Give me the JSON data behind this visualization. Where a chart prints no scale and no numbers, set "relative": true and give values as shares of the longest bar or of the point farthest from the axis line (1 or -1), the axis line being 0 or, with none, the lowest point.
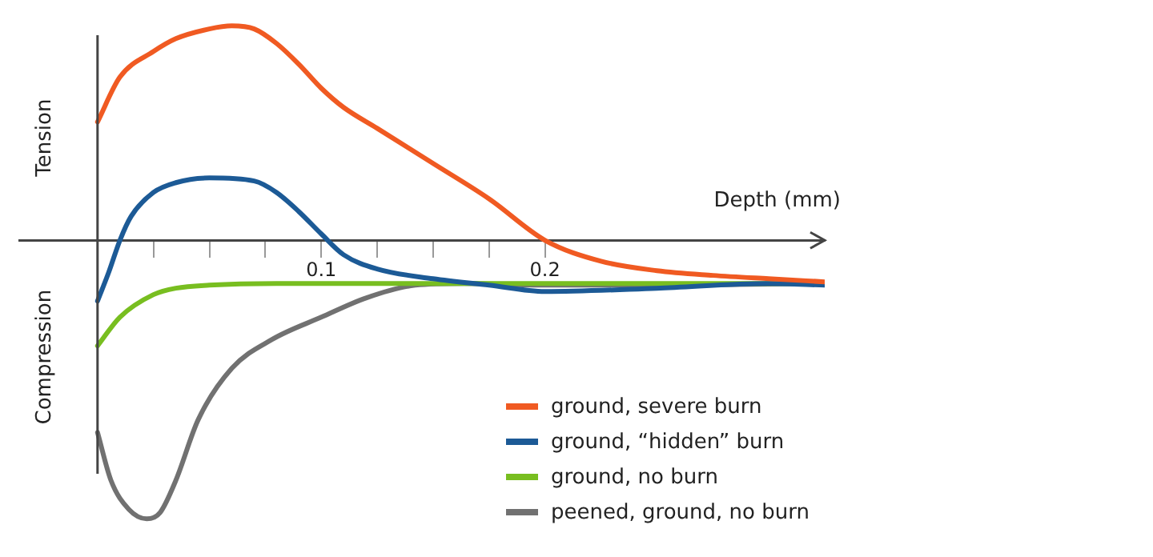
{
  "chart_data": {
    "type": "line",
    "relative": true,
    "xlabel": "Depth (mm)",
    "annotations": [
      "Tension",
      "Compression"
    ],
    "xlim": [
      -0.035,
      0.325
    ],
    "xticks": [
      {
        "value": 0.025,
        "label": null
      },
      {
        "value": 0.05,
        "label": null
      },
      {
        "value": 0.075,
        "label": null
      },
      0.1,
      {
        "value": 0.125,
        "label": null
      },
      {
        "value": 0.15,
        "label": null
      },
      {
        "value": 0.175,
        "label": null
      },
      0.2
    ],
    "legend": "bottom right",
    "grid": false,
    "marker": "none",
    "line_style": "solid",
    "series": [
      {
        "name": "ground, severe burn",
        "color": "#f05a22",
        "x": [
          0,
          0.01,
          0.025,
          0.035,
          0.05,
          0.06,
          0.07,
          0.08,
          0.09,
          0.1,
          0.11,
          0.125,
          0.15,
          0.175,
          0.2,
          0.225,
          0.25,
          0.275,
          0.3,
          0.325
        ],
        "values": [
          0.425,
          0.586,
          0.678,
          0.724,
          0.759,
          0.77,
          0.759,
          0.707,
          0.632,
          0.546,
          0.477,
          0.402,
          0.276,
          0.149,
          0,
          -0.075,
          -0.109,
          -0.126,
          -0.138,
          -0.149
        ]
      },
      {
        "name": "ground, “hidden” burn",
        "color": "#1c5a96",
        "x": [
          0,
          0.005,
          0.01,
          0.015,
          0.025,
          0.035,
          0.05,
          0.07,
          0.08,
          0.09,
          0.1,
          0.11,
          0.125,
          0.15,
          0.175,
          0.2,
          0.25,
          0.3,
          0.325
        ],
        "values": [
          -0.218,
          -0.115,
          0,
          0.086,
          0.172,
          0.207,
          0.224,
          0.213,
          0.172,
          0.103,
          0.023,
          -0.052,
          -0.103,
          -0.138,
          -0.161,
          -0.184,
          -0.172,
          -0.155,
          -0.161
        ]
      },
      {
        "name": "ground, no burn",
        "color": "#78be20",
        "x": [
          0,
          0.01,
          0.025,
          0.035,
          0.05,
          0.08,
          0.15,
          0.25,
          0.325
        ],
        "values": [
          -0.379,
          -0.276,
          -0.195,
          -0.172,
          -0.161,
          -0.155,
          -0.155,
          -0.155,
          -0.155
        ]
      },
      {
        "name": "peened, ground, no burn",
        "color": "#717171",
        "x": [
          0,
          0.006,
          0.014,
          0.022,
          0.028,
          0.035,
          0.045,
          0.06,
          0.078,
          0.1,
          0.12,
          0.142,
          0.164,
          0.2,
          0.25,
          0.325
        ],
        "values": [
          -0.69,
          -0.862,
          -0.966,
          -1,
          -0.977,
          -0.862,
          -0.644,
          -0.46,
          -0.356,
          -0.276,
          -0.207,
          -0.161,
          -0.155,
          -0.161,
          -0.161,
          -0.155
        ]
      }
    ]
  }
}
